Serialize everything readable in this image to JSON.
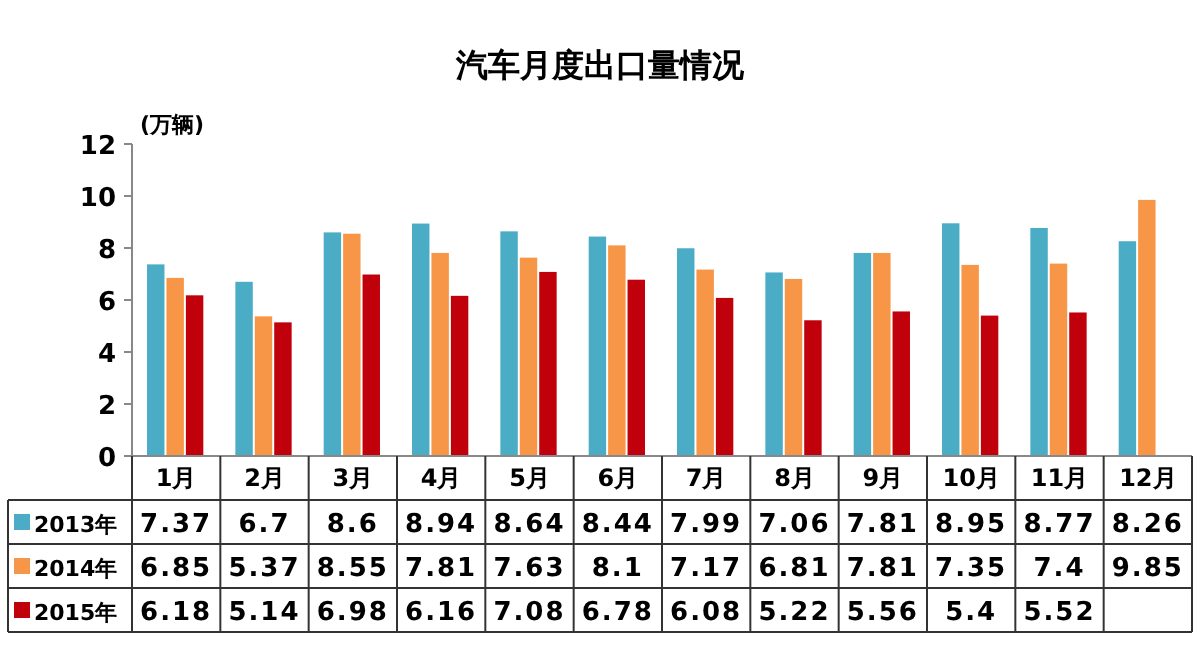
{
  "chart_data": {
    "type": "bar",
    "title": "汽车月度出口量情况",
    "ylabel": "(万辆)",
    "categories": [
      "1月",
      "2月",
      "3月",
      "4月",
      "5月",
      "6月",
      "7月",
      "8月",
      "9月",
      "10月",
      "11月",
      "12月"
    ],
    "series": [
      {
        "name": "2013年",
        "color": "#4bacc6",
        "values": [
          7.37,
          6.7,
          8.6,
          8.94,
          8.64,
          8.44,
          7.99,
          7.06,
          7.81,
          8.95,
          8.77,
          8.26
        ]
      },
      {
        "name": "2014年",
        "color": "#f79646",
        "values": [
          6.85,
          5.37,
          8.55,
          7.81,
          7.63,
          8.1,
          7.17,
          6.81,
          7.81,
          7.35,
          7.4,
          9.85
        ]
      },
      {
        "name": "2015年",
        "color": "#c0000b",
        "values": [
          6.18,
          5.14,
          6.98,
          6.16,
          7.08,
          6.78,
          6.08,
          5.22,
          5.56,
          5.4,
          5.52,
          null
        ]
      }
    ],
    "ylim": [
      0,
      12
    ],
    "yticks": [
      0,
      2,
      4,
      6,
      8,
      10,
      12
    ],
    "data_labels": true,
    "legend": "bottom"
  }
}
